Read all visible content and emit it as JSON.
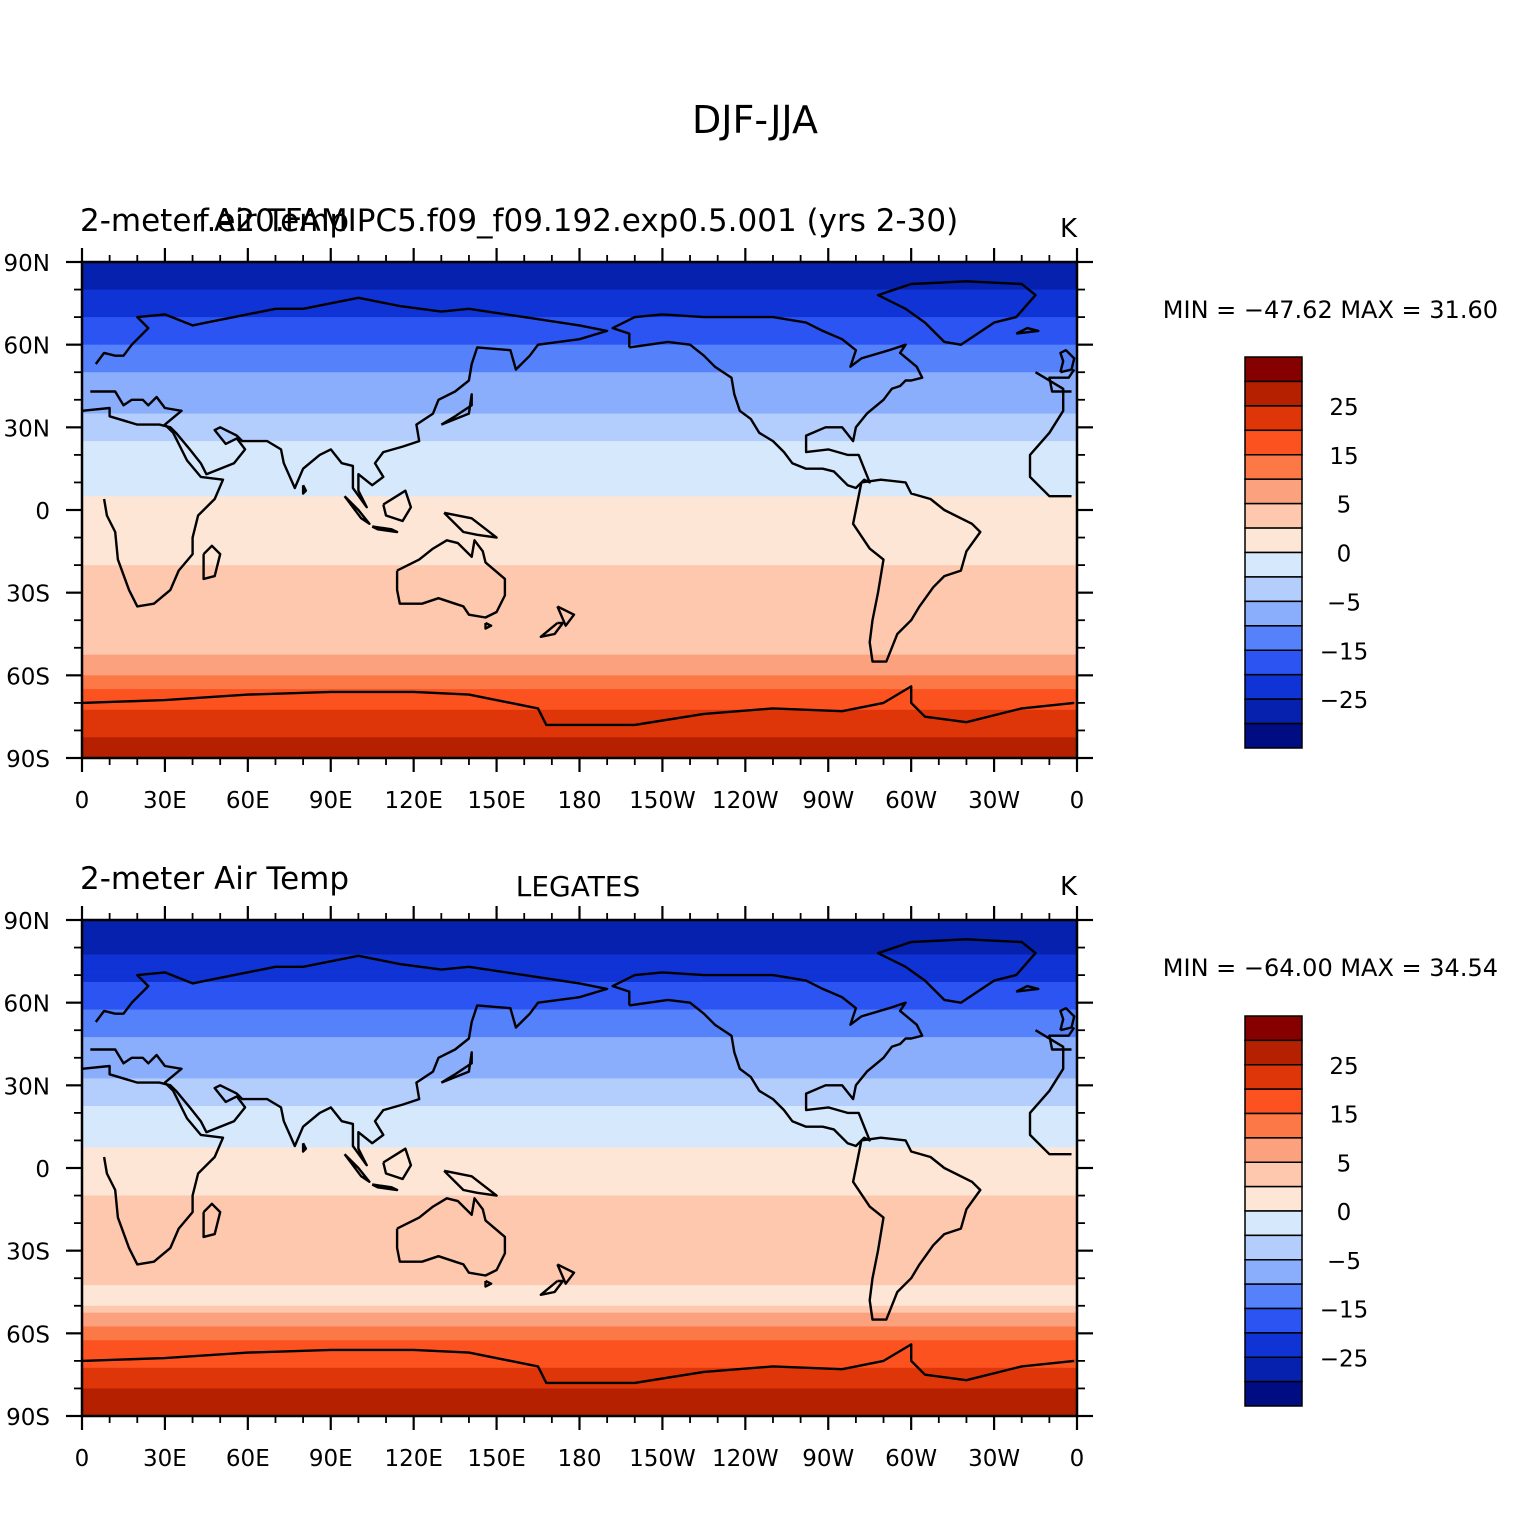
{
  "figure": {
    "title": "DJF-JJA"
  },
  "chart_data": [
    {
      "type": "heatmap",
      "variable_label": "2-meter Air Temp",
      "center_title": "f.e20.FAMIPC5.f09_f09.192.exp0.5.001 (yrs 2-30)",
      "units": "K",
      "min_max": "MIN = −47.62  MAX =   31.60",
      "min": -47.62,
      "max": 31.6,
      "x_ticks": [
        "0",
        "30E",
        "60E",
        "90E",
        "120E",
        "150E",
        "180",
        "150W",
        "120W",
        "90W",
        "60W",
        "30W",
        "0"
      ],
      "y_ticks": [
        "90N",
        "60N",
        "30N",
        "0",
        "30S",
        "60S",
        "90S"
      ],
      "xlim": [
        0,
        360
      ],
      "ylim": [
        -90,
        90
      ],
      "zonal_profile": [
        {
          "lat": 85,
          "v": -28
        },
        {
          "lat": 75,
          "v": -22
        },
        {
          "lat": 62,
          "v": -16
        },
        {
          "lat": 50,
          "v": -10
        },
        {
          "lat": 40,
          "v": -6
        },
        {
          "lat": 30,
          "v": -3.5
        },
        {
          "lat": 20,
          "v": -1.5
        },
        {
          "lat": 10,
          "v": -0.8
        },
        {
          "lat": 0,
          "v": 0.5
        },
        {
          "lat": -10,
          "v": 1.5
        },
        {
          "lat": -20,
          "v": 2.5
        },
        {
          "lat": -30,
          "v": 3.2
        },
        {
          "lat": -40,
          "v": 3.8
        },
        {
          "lat": -50,
          "v": 4.5
        },
        {
          "lat": -57,
          "v": 7
        },
        {
          "lat": -62,
          "v": 12
        },
        {
          "lat": -68,
          "v": 17
        },
        {
          "lat": -75,
          "v": 21
        },
        {
          "lat": -85,
          "v": 26
        }
      ]
    },
    {
      "type": "heatmap",
      "variable_label": "2-meter Air Temp",
      "center_title": "LEGATES",
      "units": "K",
      "min_max": "MIN = −64.00  MAX =   34.54",
      "min": -64.0,
      "max": 34.54,
      "x_ticks": [
        "0",
        "30E",
        "60E",
        "90E",
        "120E",
        "150E",
        "180",
        "150W",
        "120W",
        "90W",
        "60W",
        "30W",
        "0"
      ],
      "y_ticks": [
        "90N",
        "60N",
        "30N",
        "0",
        "30S",
        "60S",
        "90S"
      ],
      "xlim": [
        0,
        360
      ],
      "ylim": [
        -90,
        90
      ],
      "zonal_profile": [
        {
          "lat": 85,
          "v": -28
        },
        {
          "lat": 75,
          "v": -24
        },
        {
          "lat": 62,
          "v": -18
        },
        {
          "lat": 50,
          "v": -11
        },
        {
          "lat": 40,
          "v": -7
        },
        {
          "lat": 30,
          "v": -4
        },
        {
          "lat": 20,
          "v": -1.8
        },
        {
          "lat": 10,
          "v": -0.5
        },
        {
          "lat": 0,
          "v": 1
        },
        {
          "lat": -10,
          "v": 2.5
        },
        {
          "lat": -20,
          "v": 3.5
        },
        {
          "lat": -30,
          "v": 4
        },
        {
          "lat": -40,
          "v": 3
        },
        {
          "lat": -50,
          "v": 1.5
        },
        {
          "lat": -56,
          "v": 8
        },
        {
          "lat": -62,
          "v": 14
        },
        {
          "lat": -70,
          "v": 19
        },
        {
          "lat": -80,
          "v": 25
        },
        {
          "lat": -88,
          "v": 28
        }
      ]
    }
  ],
  "colorbar": {
    "labels": [
      "25",
      "15",
      "5",
      "0",
      "−5",
      "−15",
      "−25"
    ],
    "colors": [
      "#870000",
      "#b52000",
      "#de3608",
      "#fc5220",
      "#fc7947",
      "#fca17d",
      "#fdc8ad",
      "#fde6d6",
      "#d6e9fc",
      "#b3cefc",
      "#8aadfc",
      "#5582fb",
      "#2b54f2",
      "#0f33d4",
      "#0521ae",
      "#000c82"
    ],
    "levels": [
      30,
      25,
      20,
      15,
      10,
      5,
      2.5,
      0,
      -2.5,
      -5,
      -10,
      -15,
      -20,
      -25,
      -30
    ]
  }
}
